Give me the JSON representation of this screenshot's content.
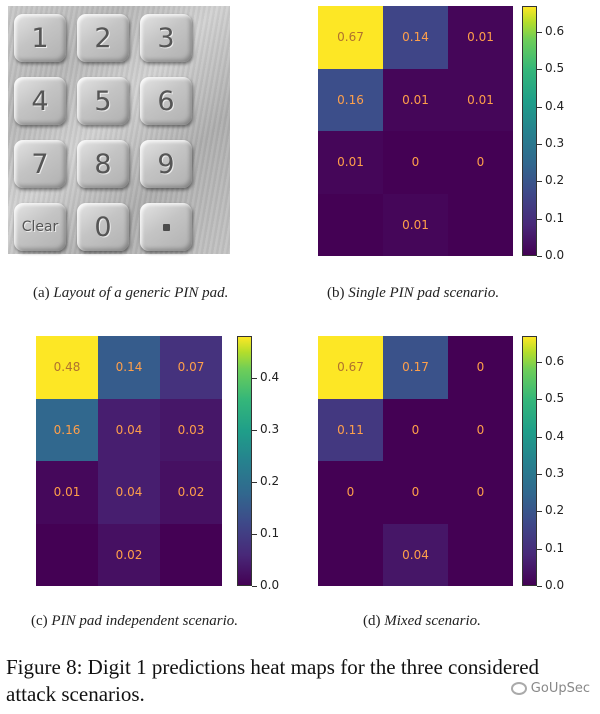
{
  "panel_a": {
    "caption_label": "(a)",
    "caption_text": "Layout of a generic PIN pad.",
    "keys": [
      "1",
      "2",
      "3",
      "4",
      "5",
      "6",
      "7",
      "8",
      "9",
      "Clear",
      "0",
      "▪"
    ]
  },
  "chart_data": [
    {
      "type": "heatmap",
      "caption_label": "(b)",
      "title": "Single PIN pad scenario.",
      "rows": 4,
      "cols": 3,
      "values": [
        [
          0.67,
          0.14,
          0.01
        ],
        [
          0.16,
          0.01,
          0.01
        ],
        [
          0.01,
          0,
          0
        ],
        [
          null,
          0.01,
          null
        ]
      ],
      "labels": [
        [
          "0.67",
          "0.14",
          "0.01"
        ],
        [
          "0.16",
          "0.01",
          "0.01"
        ],
        [
          "0.01",
          "0",
          "0"
        ],
        [
          "",
          "0.01",
          ""
        ]
      ],
      "vmin": 0,
      "vmax": 0.67,
      "colorbar_ticks": [
        "0.0",
        "0.1",
        "0.2",
        "0.3",
        "0.4",
        "0.5",
        "0.6"
      ],
      "colorbar_tick_values": [
        0,
        0.1,
        0.2,
        0.3,
        0.4,
        0.5,
        0.6
      ]
    },
    {
      "type": "heatmap",
      "caption_label": "(c)",
      "title": "PIN pad independent scenario.",
      "rows": 4,
      "cols": 3,
      "values": [
        [
          0.48,
          0.14,
          0.07
        ],
        [
          0.16,
          0.04,
          0.03
        ],
        [
          0.01,
          0.04,
          0.02
        ],
        [
          null,
          0.02,
          null
        ]
      ],
      "labels": [
        [
          "0.48",
          "0.14",
          "0.07"
        ],
        [
          "0.16",
          "0.04",
          "0.03"
        ],
        [
          "0.01",
          "0.04",
          "0.02"
        ],
        [
          "",
          "0.02",
          ""
        ]
      ],
      "vmin": 0,
      "vmax": 0.48,
      "colorbar_ticks": [
        "0.0",
        "0.1",
        "0.2",
        "0.3",
        "0.4"
      ],
      "colorbar_tick_values": [
        0,
        0.1,
        0.2,
        0.3,
        0.4
      ]
    },
    {
      "type": "heatmap",
      "caption_label": "(d)",
      "title": "Mixed scenario.",
      "rows": 4,
      "cols": 3,
      "values": [
        [
          0.67,
          0.17,
          0
        ],
        [
          0.11,
          0,
          0
        ],
        [
          0,
          0,
          0
        ],
        [
          null,
          0.04,
          null
        ]
      ],
      "labels": [
        [
          "0.67",
          "0.17",
          "0"
        ],
        [
          "0.11",
          "0",
          "0"
        ],
        [
          "0",
          "0",
          "0"
        ],
        [
          "",
          "0.04",
          ""
        ]
      ],
      "vmin": 0,
      "vmax": 0.67,
      "colorbar_ticks": [
        "0.0",
        "0.1",
        "0.2",
        "0.3",
        "0.4",
        "0.5",
        "0.6"
      ],
      "colorbar_tick_values": [
        0,
        0.1,
        0.2,
        0.3,
        0.4,
        0.5,
        0.6
      ]
    }
  ],
  "figure_caption": "Figure 8: Digit 1 predictions heat maps for the three considered attack scenarios.",
  "watermark": "GoUpSec"
}
